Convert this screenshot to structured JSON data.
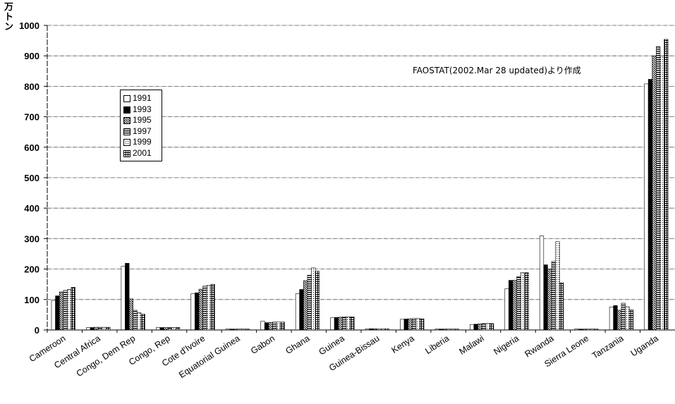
{
  "unit_label": "万トン",
  "source_note": "FAOSTAT(2002.Mar 28 updated)より作成",
  "chart_data": {
    "type": "bar",
    "title": "",
    "xlabel": "",
    "ylabel": "万トン",
    "ylim": [
      0,
      1000
    ],
    "yticks": [
      0,
      100,
      200,
      300,
      400,
      500,
      600,
      700,
      800,
      900,
      1000
    ],
    "grid": true,
    "legend_position": "top-left",
    "categories": [
      "Cameroon",
      "Central Africa",
      "Congo, Dem Rep",
      "Congo, Rep",
      "Cote d'Ivoire",
      "Equatorial Guinea",
      "Gabon",
      "Ghana",
      "Guinea",
      "Guinea-Bissau",
      "Kenya",
      "Liberia",
      "Malawi",
      "Nigeria",
      "Rwanda",
      "Sierra Leone",
      "Tanzania",
      "Uganda"
    ],
    "series": [
      {
        "name": "1991",
        "pattern": "white",
        "values": [
          97,
          8,
          209,
          8,
          119,
          3,
          29,
          119,
          40,
          4,
          35,
          3,
          18,
          135,
          309,
          3,
          75,
          808
        ]
      },
      {
        "name": "1993",
        "pattern": "black",
        "values": [
          112,
          8,
          219,
          8,
          122,
          3,
          24,
          133,
          41,
          4,
          36,
          3,
          19,
          163,
          214,
          3,
          80,
          823
        ]
      },
      {
        "name": "1995",
        "pattern": "diag",
        "values": [
          125,
          9,
          102,
          8,
          134,
          3,
          25,
          162,
          42,
          4,
          37,
          3,
          20,
          163,
          200,
          3,
          65,
          900
        ]
      },
      {
        "name": "1997",
        "pattern": "hstripe",
        "values": [
          130,
          9,
          65,
          8,
          144,
          3,
          26,
          180,
          43,
          4,
          38,
          3,
          21,
          175,
          225,
          3,
          88,
          930
        ]
      },
      {
        "name": "1999",
        "pattern": "dots",
        "values": [
          133,
          9,
          57,
          8,
          146,
          3,
          26,
          204,
          43,
          4,
          38,
          3,
          21,
          188,
          290,
          3,
          76,
          900
        ]
      },
      {
        "name": "2001",
        "pattern": "grid",
        "values": [
          140,
          9,
          52,
          8,
          150,
          3,
          26,
          193,
          43,
          4,
          37,
          3,
          21,
          188,
          155,
          3,
          66,
          954
        ]
      }
    ]
  }
}
